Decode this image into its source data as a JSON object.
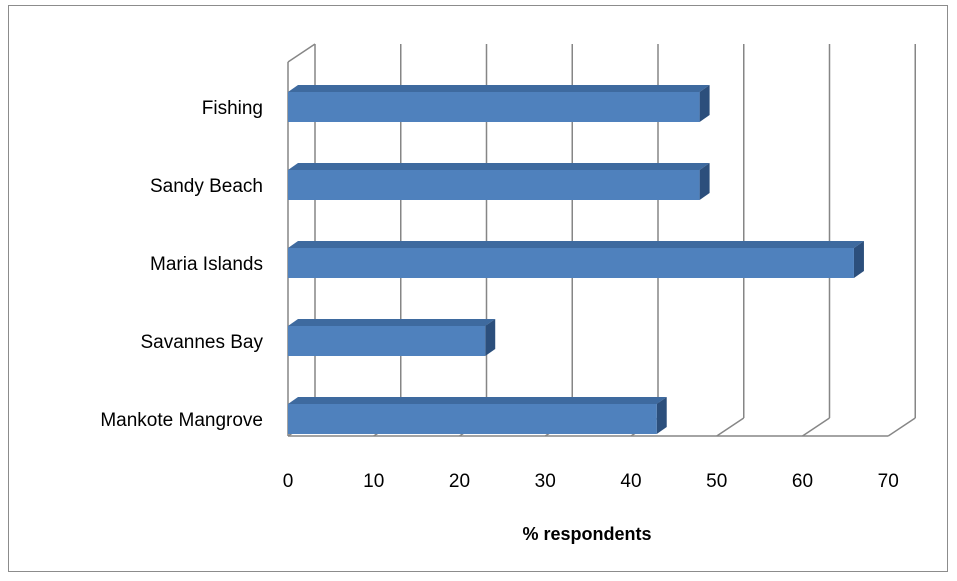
{
  "chart_data": {
    "type": "bar",
    "orientation": "horizontal",
    "three_d": true,
    "categories": [
      "Fishing",
      "Sandy Beach",
      "Maria Islands",
      "Savannes Bay",
      "Mankote Mangrove"
    ],
    "values": [
      48,
      48,
      66,
      23,
      43
    ],
    "xlabel": "% respondents",
    "ylabel": "",
    "xlim": [
      0,
      70
    ],
    "xticks": [
      "0",
      "10",
      "20",
      "30",
      "40",
      "50",
      "60",
      "70"
    ],
    "grid": true,
    "legend": "none",
    "bar_color": "#4f81bd",
    "bar_top_color": "#3e6a9f",
    "bar_side_color": "#2c4f7c"
  }
}
